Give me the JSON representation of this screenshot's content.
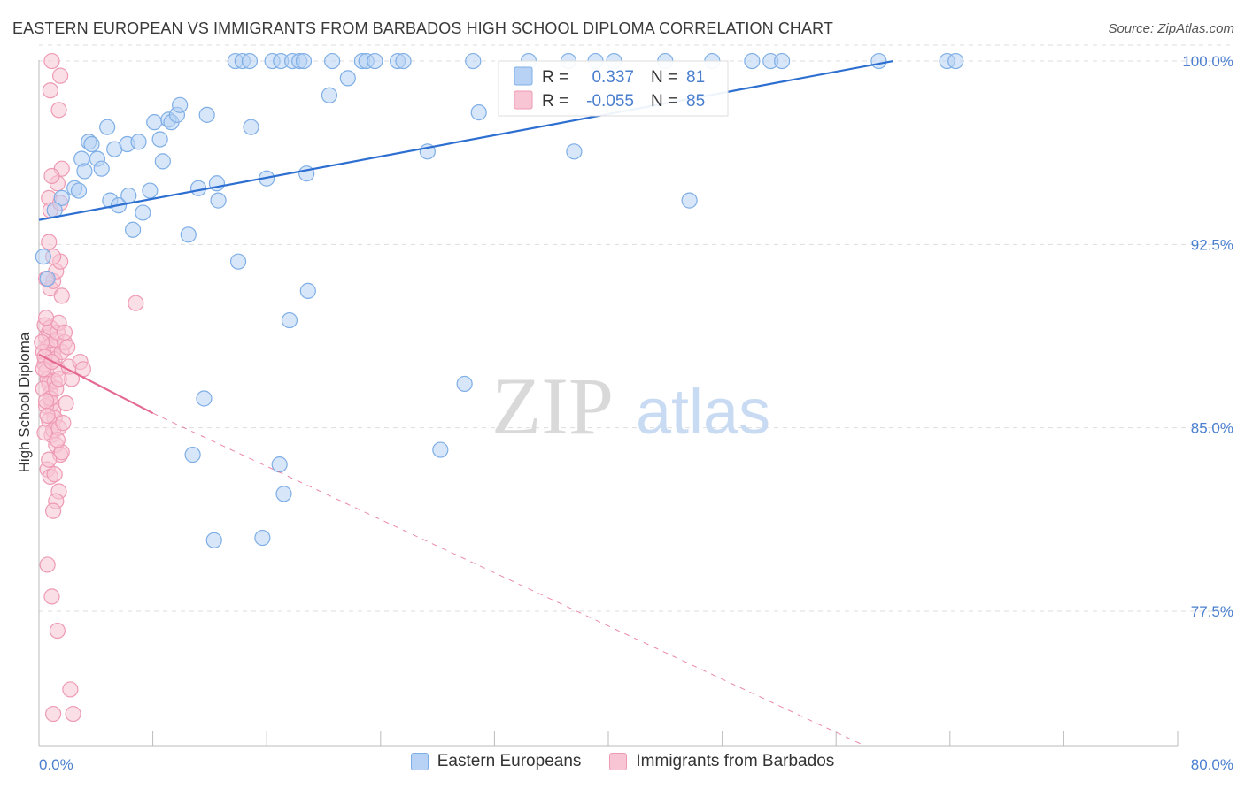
{
  "header": {
    "title": "EASTERN EUROPEAN VS IMMIGRANTS FROM BARBADOS HIGH SCHOOL DIPLOMA CORRELATION CHART",
    "source": "Source: ZipAtlas.com"
  },
  "watermark": {
    "zip": "ZIP",
    "atlas": "atlas"
  },
  "stats_legend": [
    {
      "r_label": "R =",
      "r_value": "0.337",
      "n_label": "N =",
      "n_value": "81",
      "color": "#5b8fd8"
    },
    {
      "r_label": "R =",
      "r_value": "-0.055",
      "n_label": "N =",
      "n_value": "85",
      "color": "#ea6f97"
    }
  ],
  "colors": {
    "blue_fill": "#b7d2f4",
    "blue_stroke": "#7eaee6",
    "blue_line": "#2d6fd1",
    "pink_fill": "#f8c5d4",
    "pink_stroke": "#ee9ab3",
    "pink_line": "#e56a93",
    "axis_text": "#4a7fcf",
    "grid": "#dddddd"
  },
  "chart_data": {
    "type": "scatter",
    "title": "EASTERN EUROPEAN VS IMMIGRANTS FROM BARBADOS HIGH SCHOOL DIPLOMA CORRELATION CHART",
    "xlabel": "",
    "ylabel": "High School Diploma",
    "xlim": [
      0,
      80
    ],
    "ylim": [
      72.0,
      100.4
    ],
    "x_tick_labels": [
      {
        "value": 0,
        "label": "0.0%"
      },
      {
        "value": 80,
        "label": "80.0%"
      }
    ],
    "y_tick_labels": [
      {
        "value": 100.0,
        "label": "100.0%"
      },
      {
        "value": 92.5,
        "label": "92.5%"
      },
      {
        "value": 85.0,
        "label": "85.0%"
      },
      {
        "value": 77.5,
        "label": "77.5%"
      }
    ],
    "grid": true,
    "series": [
      {
        "name": "Eastern Europeans",
        "color": "#7eaee6",
        "trend": {
          "x": [
            0,
            60
          ],
          "y": [
            93.5,
            100.0
          ]
        },
        "points": [
          [
            0.3,
            92.0
          ],
          [
            0.6,
            91.1
          ],
          [
            1.6,
            94.4
          ],
          [
            1.1,
            93.9
          ],
          [
            2.5,
            94.8
          ],
          [
            2.8,
            94.7
          ],
          [
            3.0,
            96.0
          ],
          [
            3.2,
            95.5
          ],
          [
            3.5,
            96.7
          ],
          [
            3.7,
            96.6
          ],
          [
            4.1,
            96.0
          ],
          [
            4.4,
            95.6
          ],
          [
            4.8,
            97.3
          ],
          [
            5.0,
            94.3
          ],
          [
            5.3,
            96.4
          ],
          [
            5.6,
            94.1
          ],
          [
            6.2,
            96.6
          ],
          [
            6.3,
            94.5
          ],
          [
            6.6,
            93.1
          ],
          [
            7.0,
            96.7
          ],
          [
            7.3,
            93.8
          ],
          [
            7.8,
            94.7
          ],
          [
            8.1,
            97.5
          ],
          [
            8.5,
            96.8
          ],
          [
            8.7,
            95.9
          ],
          [
            9.1,
            97.6
          ],
          [
            9.3,
            97.5
          ],
          [
            9.7,
            97.8
          ],
          [
            9.9,
            98.2
          ],
          [
            10.5,
            92.9
          ],
          [
            11.2,
            94.8
          ],
          [
            11.8,
            97.8
          ],
          [
            12.5,
            95.0
          ],
          [
            12.6,
            94.3
          ],
          [
            13.8,
            100.0
          ],
          [
            14.3,
            100.0
          ],
          [
            14.8,
            100.0
          ],
          [
            14.0,
            91.8
          ],
          [
            14.9,
            97.3
          ],
          [
            16.0,
            95.2
          ],
          [
            16.4,
            100.0
          ],
          [
            17.0,
            100.0
          ],
          [
            17.8,
            100.0
          ],
          [
            18.3,
            100.0
          ],
          [
            18.6,
            100.0
          ],
          [
            17.6,
            89.4
          ],
          [
            18.8,
            95.4
          ],
          [
            18.9,
            90.6
          ],
          [
            20.4,
            98.6
          ],
          [
            20.6,
            100.0
          ],
          [
            21.7,
            99.3
          ],
          [
            22.7,
            100.0
          ],
          [
            23.0,
            100.0
          ],
          [
            23.6,
            100.0
          ],
          [
            25.2,
            100.0
          ],
          [
            25.6,
            100.0
          ],
          [
            27.3,
            96.3
          ],
          [
            29.9,
            86.8
          ],
          [
            30.5,
            100.0
          ],
          [
            30.9,
            97.9
          ],
          [
            34.4,
            100.0
          ],
          [
            37.2,
            100.0
          ],
          [
            37.6,
            96.3
          ],
          [
            39.1,
            100.0
          ],
          [
            40.4,
            100.0
          ],
          [
            44.0,
            100.0
          ],
          [
            45.7,
            94.3
          ],
          [
            47.3,
            100.0
          ],
          [
            50.1,
            100.0
          ],
          [
            51.4,
            100.0
          ],
          [
            52.2,
            100.0
          ],
          [
            59.0,
            100.0
          ],
          [
            63.8,
            100.0
          ],
          [
            64.4,
            100.0
          ],
          [
            11.6,
            86.2
          ],
          [
            10.8,
            83.9
          ],
          [
            12.3,
            80.4
          ],
          [
            15.7,
            80.5
          ],
          [
            16.9,
            83.5
          ],
          [
            17.2,
            82.3
          ],
          [
            28.2,
            84.1
          ]
        ]
      },
      {
        "name": "Immigrants from Barbados",
        "color": "#ee9ab3",
        "trend": {
          "x": [
            0,
            8
          ],
          "y": [
            88.0,
            85.6
          ],
          "dashed_x": [
            8,
            58
          ],
          "dashed_y": [
            85.6,
            72.0
          ]
        },
        "points": [
          [
            0.4,
            89.2
          ],
          [
            0.5,
            88.7
          ],
          [
            0.6,
            88.3
          ],
          [
            0.7,
            88.9
          ],
          [
            0.8,
            89.1
          ],
          [
            0.9,
            88.4
          ],
          [
            1.0,
            88.0
          ],
          [
            1.1,
            87.8
          ],
          [
            1.2,
            88.6
          ],
          [
            1.3,
            88.9
          ],
          [
            1.4,
            89.3
          ],
          [
            0.3,
            88.1
          ],
          [
            0.4,
            87.6
          ],
          [
            0.5,
            87.3
          ],
          [
            0.6,
            87.0
          ],
          [
            0.7,
            86.8
          ],
          [
            0.8,
            86.4
          ],
          [
            0.9,
            86.0
          ],
          [
            1.0,
            85.7
          ],
          [
            1.1,
            85.4
          ],
          [
            0.3,
            86.6
          ],
          [
            0.5,
            85.9
          ],
          [
            0.7,
            85.3
          ],
          [
            0.9,
            84.7
          ],
          [
            1.2,
            84.3
          ],
          [
            1.5,
            83.9
          ],
          [
            0.6,
            83.3
          ],
          [
            0.8,
            83.0
          ],
          [
            1.4,
            82.4
          ],
          [
            1.2,
            82.0
          ],
          [
            1.0,
            81.6
          ],
          [
            0.6,
            79.4
          ],
          [
            0.9,
            78.1
          ],
          [
            1.3,
            76.7
          ],
          [
            2.2,
            74.3
          ],
          [
            1.0,
            73.3
          ],
          [
            2.4,
            73.3
          ],
          [
            0.8,
            90.7
          ],
          [
            1.0,
            91.0
          ],
          [
            1.2,
            91.4
          ],
          [
            1.5,
            91.8
          ],
          [
            1.6,
            90.4
          ],
          [
            0.5,
            91.1
          ],
          [
            0.7,
            92.6
          ],
          [
            1.0,
            92.0
          ],
          [
            0.7,
            94.4
          ],
          [
            0.8,
            93.9
          ],
          [
            1.5,
            94.2
          ],
          [
            1.3,
            95.0
          ],
          [
            1.6,
            95.6
          ],
          [
            0.9,
            95.3
          ],
          [
            1.4,
            98.0
          ],
          [
            0.8,
            98.8
          ],
          [
            1.5,
            99.4
          ],
          [
            0.9,
            100.0
          ],
          [
            6.8,
            90.1
          ],
          [
            1.3,
            87.4
          ],
          [
            1.6,
            88.1
          ],
          [
            1.8,
            88.5
          ],
          [
            2.1,
            87.5
          ],
          [
            2.3,
            87.0
          ],
          [
            2.9,
            87.7
          ],
          [
            3.1,
            87.4
          ],
          [
            1.0,
            84.9
          ],
          [
            1.4,
            85.0
          ],
          [
            1.7,
            85.2
          ],
          [
            0.4,
            87.9
          ],
          [
            0.5,
            89.5
          ],
          [
            1.1,
            86.9
          ],
          [
            0.8,
            86.2
          ],
          [
            1.6,
            84.0
          ],
          [
            1.3,
            84.5
          ],
          [
            0.4,
            84.8
          ],
          [
            0.7,
            83.7
          ],
          [
            1.1,
            83.1
          ],
          [
            1.8,
            88.9
          ],
          [
            2.0,
            88.3
          ],
          [
            0.2,
            88.5
          ],
          [
            0.3,
            87.4
          ],
          [
            0.5,
            86.1
          ],
          [
            0.6,
            85.5
          ],
          [
            1.2,
            86.6
          ],
          [
            1.4,
            87.0
          ],
          [
            1.9,
            86.0
          ],
          [
            0.9,
            87.7
          ]
        ]
      }
    ]
  }
}
